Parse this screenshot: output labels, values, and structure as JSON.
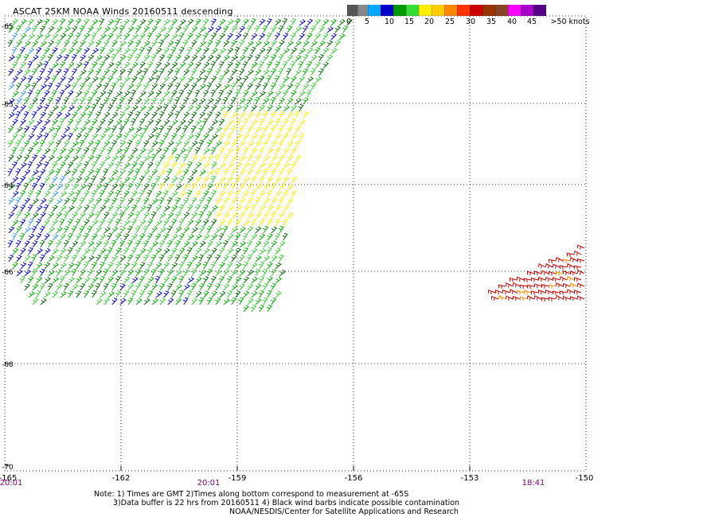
{
  "map": {
    "title": "ASCAT 25KM NOAA Winds 20160511 descending",
    "lon_ticks": [
      "-165",
      "-162",
      "-159",
      "-156",
      "-153",
      "-150"
    ],
    "lat_ticks": [
      "-65",
      "-63",
      "-64",
      "-66",
      "-68",
      "-70"
    ],
    "times": [
      {
        "label": "20:01",
        "color": "#800080"
      },
      {
        "label": "20:01",
        "color": "#800080"
      },
      {
        "label": "18:41",
        "color": "#800080"
      }
    ],
    "notes": [
      "Note: 1) Times are GMT 2)Times along bottom correspond to measurement at -65S",
      "3)Data buffer is 22 hrs from 20160511 4) Black wind barbs indicate possible contamination",
      "NOAA/NESDIS/Center for Satellite Applications and Research"
    ]
  },
  "scale": {
    "unit_label": ">50 knots",
    "labels": [
      "0",
      "5",
      "10",
      "15",
      "20",
      "25",
      "30",
      "35",
      "40",
      "45"
    ],
    "colors": [
      "#555555",
      "#888888",
      "#00aaff",
      "#0000cc",
      "#009900",
      "#33dd33",
      "#ffee00",
      "#ffcc00",
      "#ff8800",
      "#ff3300",
      "#cc0000",
      "#993300",
      "#884422",
      "#ff00ff",
      "#aa00cc",
      "#550088"
    ]
  },
  "wind": {
    "colors": {
      "dark_green": "#006600",
      "green": "#00aa00",
      "bright_green": "#33cc33",
      "blue": "#0000cc",
      "light_blue": "#3399ff",
      "yellow": "#ffee00",
      "red": "#cc0000",
      "orange": "#ff8800",
      "black": "#000000"
    }
  }
}
